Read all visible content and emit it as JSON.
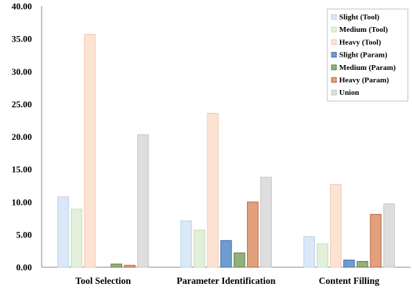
{
  "chart_data": {
    "type": "bar",
    "categories": [
      "Tool Selection",
      "Parameter Identification",
      "Content Filling"
    ],
    "series": [
      {
        "name": "Slight (Tool)",
        "values": [
          10.8,
          7.1,
          4.7
        ],
        "fill": "#dae8f7",
        "stroke": "#b8cfe8"
      },
      {
        "name": "Medium (Tool)",
        "values": [
          8.9,
          5.7,
          3.6
        ],
        "fill": "#e3f0d9",
        "stroke": "#c5dbb5"
      },
      {
        "name": "Heavy (Tool)",
        "values": [
          35.7,
          23.6,
          12.7
        ],
        "fill": "#fce3d4",
        "stroke": "#f2c7ad"
      },
      {
        "name": "Slight (Param)",
        "values": [
          0,
          4.1,
          1.1
        ],
        "fill": "#6f9ccf",
        "stroke": "#3f6ea3"
      },
      {
        "name": "Medium (Param)",
        "values": [
          0.5,
          2.2,
          0.9
        ],
        "fill": "#93b07a",
        "stroke": "#5f7d47"
      },
      {
        "name": "Heavy (Param)",
        "values": [
          0.3,
          10.0,
          8.1
        ],
        "fill": "#e2a07d",
        "stroke": "#b0653f"
      },
      {
        "name": "Union",
        "values": [
          20.3,
          13.8,
          9.7
        ],
        "fill": "#dedede",
        "stroke": "#c2c2c2"
      }
    ],
    "yticks": [
      "0.00",
      "5.00",
      "10.00",
      "15.00",
      "20.00",
      "25.00",
      "30.00",
      "35.00",
      "40.00"
    ],
    "ylim": [
      0,
      40
    ],
    "title": "",
    "xlabel": "",
    "ylabel": "",
    "grid": false,
    "legend": "top-right"
  }
}
